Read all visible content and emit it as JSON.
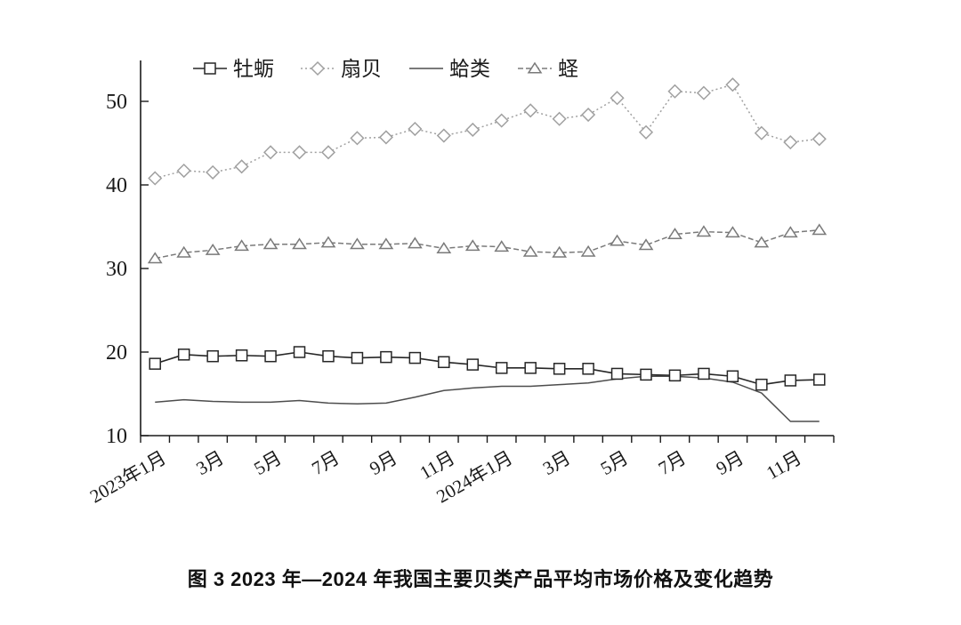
{
  "figure": {
    "caption": "图 3  2023 年—2024 年我国主要贝类产品平均市场价格及变化趋势"
  },
  "chart_data": {
    "type": "line",
    "title": "",
    "xlabel": "",
    "ylabel": "",
    "grid": false,
    "legend_position": "top",
    "n_points": 24,
    "ylim": [
      10,
      55
    ],
    "yticks": [
      10,
      20,
      30,
      40,
      50
    ],
    "ytick_labels": [
      "10",
      "20",
      "30",
      "40",
      "50"
    ],
    "x_tick_label_positions": [
      0,
      2,
      4,
      6,
      8,
      10,
      12,
      14,
      16,
      18,
      20,
      22
    ],
    "x_tick_labels": [
      "2023年1月",
      "3月",
      "5月",
      "7月",
      "9月",
      "11月",
      "2024年1月",
      "3月",
      "5月",
      "7月",
      "9月",
      "11月"
    ],
    "series": [
      {
        "key": "oyster",
        "name": "牡蛎",
        "marker": "square",
        "line": "solid",
        "color": "#262626",
        "marker_fill": "#ffffff",
        "values": [
          18.6,
          19.7,
          19.5,
          19.6,
          19.5,
          20.0,
          19.5,
          19.3,
          19.4,
          19.3,
          18.8,
          18.5,
          18.1,
          18.1,
          18.0,
          18.0,
          17.4,
          17.3,
          17.2,
          17.4,
          17.1,
          16.1,
          16.6,
          16.7
        ]
      },
      {
        "key": "scallop",
        "name": "扇贝",
        "marker": "diamond",
        "line": "dotted",
        "color": "#a0a0a0",
        "marker_fill": "#ffffff",
        "values": [
          40.8,
          41.7,
          41.5,
          42.2,
          43.9,
          43.9,
          43.9,
          45.6,
          45.7,
          46.7,
          45.9,
          46.6,
          47.7,
          48.9,
          47.9,
          48.4,
          50.4,
          46.3,
          51.2,
          51.0,
          52.0,
          46.2,
          45.1,
          45.5
        ]
      },
      {
        "key": "clam",
        "name": "蛤类",
        "marker": "none",
        "line": "solid",
        "color": "#4d4d4d",
        "marker_fill": "#ffffff",
        "values": [
          14.0,
          14.3,
          14.1,
          14.0,
          14.0,
          14.2,
          13.9,
          13.8,
          13.9,
          14.6,
          15.4,
          15.7,
          15.9,
          15.9,
          16.1,
          16.3,
          16.8,
          17.1,
          17.1,
          16.9,
          16.4,
          15.1,
          11.7,
          11.7
        ]
      },
      {
        "key": "razor-clam",
        "name": "蛏",
        "marker": "triangle",
        "line": "dashed",
        "color": "#7a7a7a",
        "marker_fill": "#fdfdfd",
        "values": [
          31.2,
          31.9,
          32.2,
          32.7,
          32.9,
          32.9,
          33.1,
          32.9,
          32.9,
          33.0,
          32.4,
          32.7,
          32.6,
          32.0,
          31.9,
          32.0,
          33.3,
          32.8,
          34.1,
          34.4,
          34.3,
          33.1,
          34.3,
          34.6
        ]
      }
    ]
  }
}
